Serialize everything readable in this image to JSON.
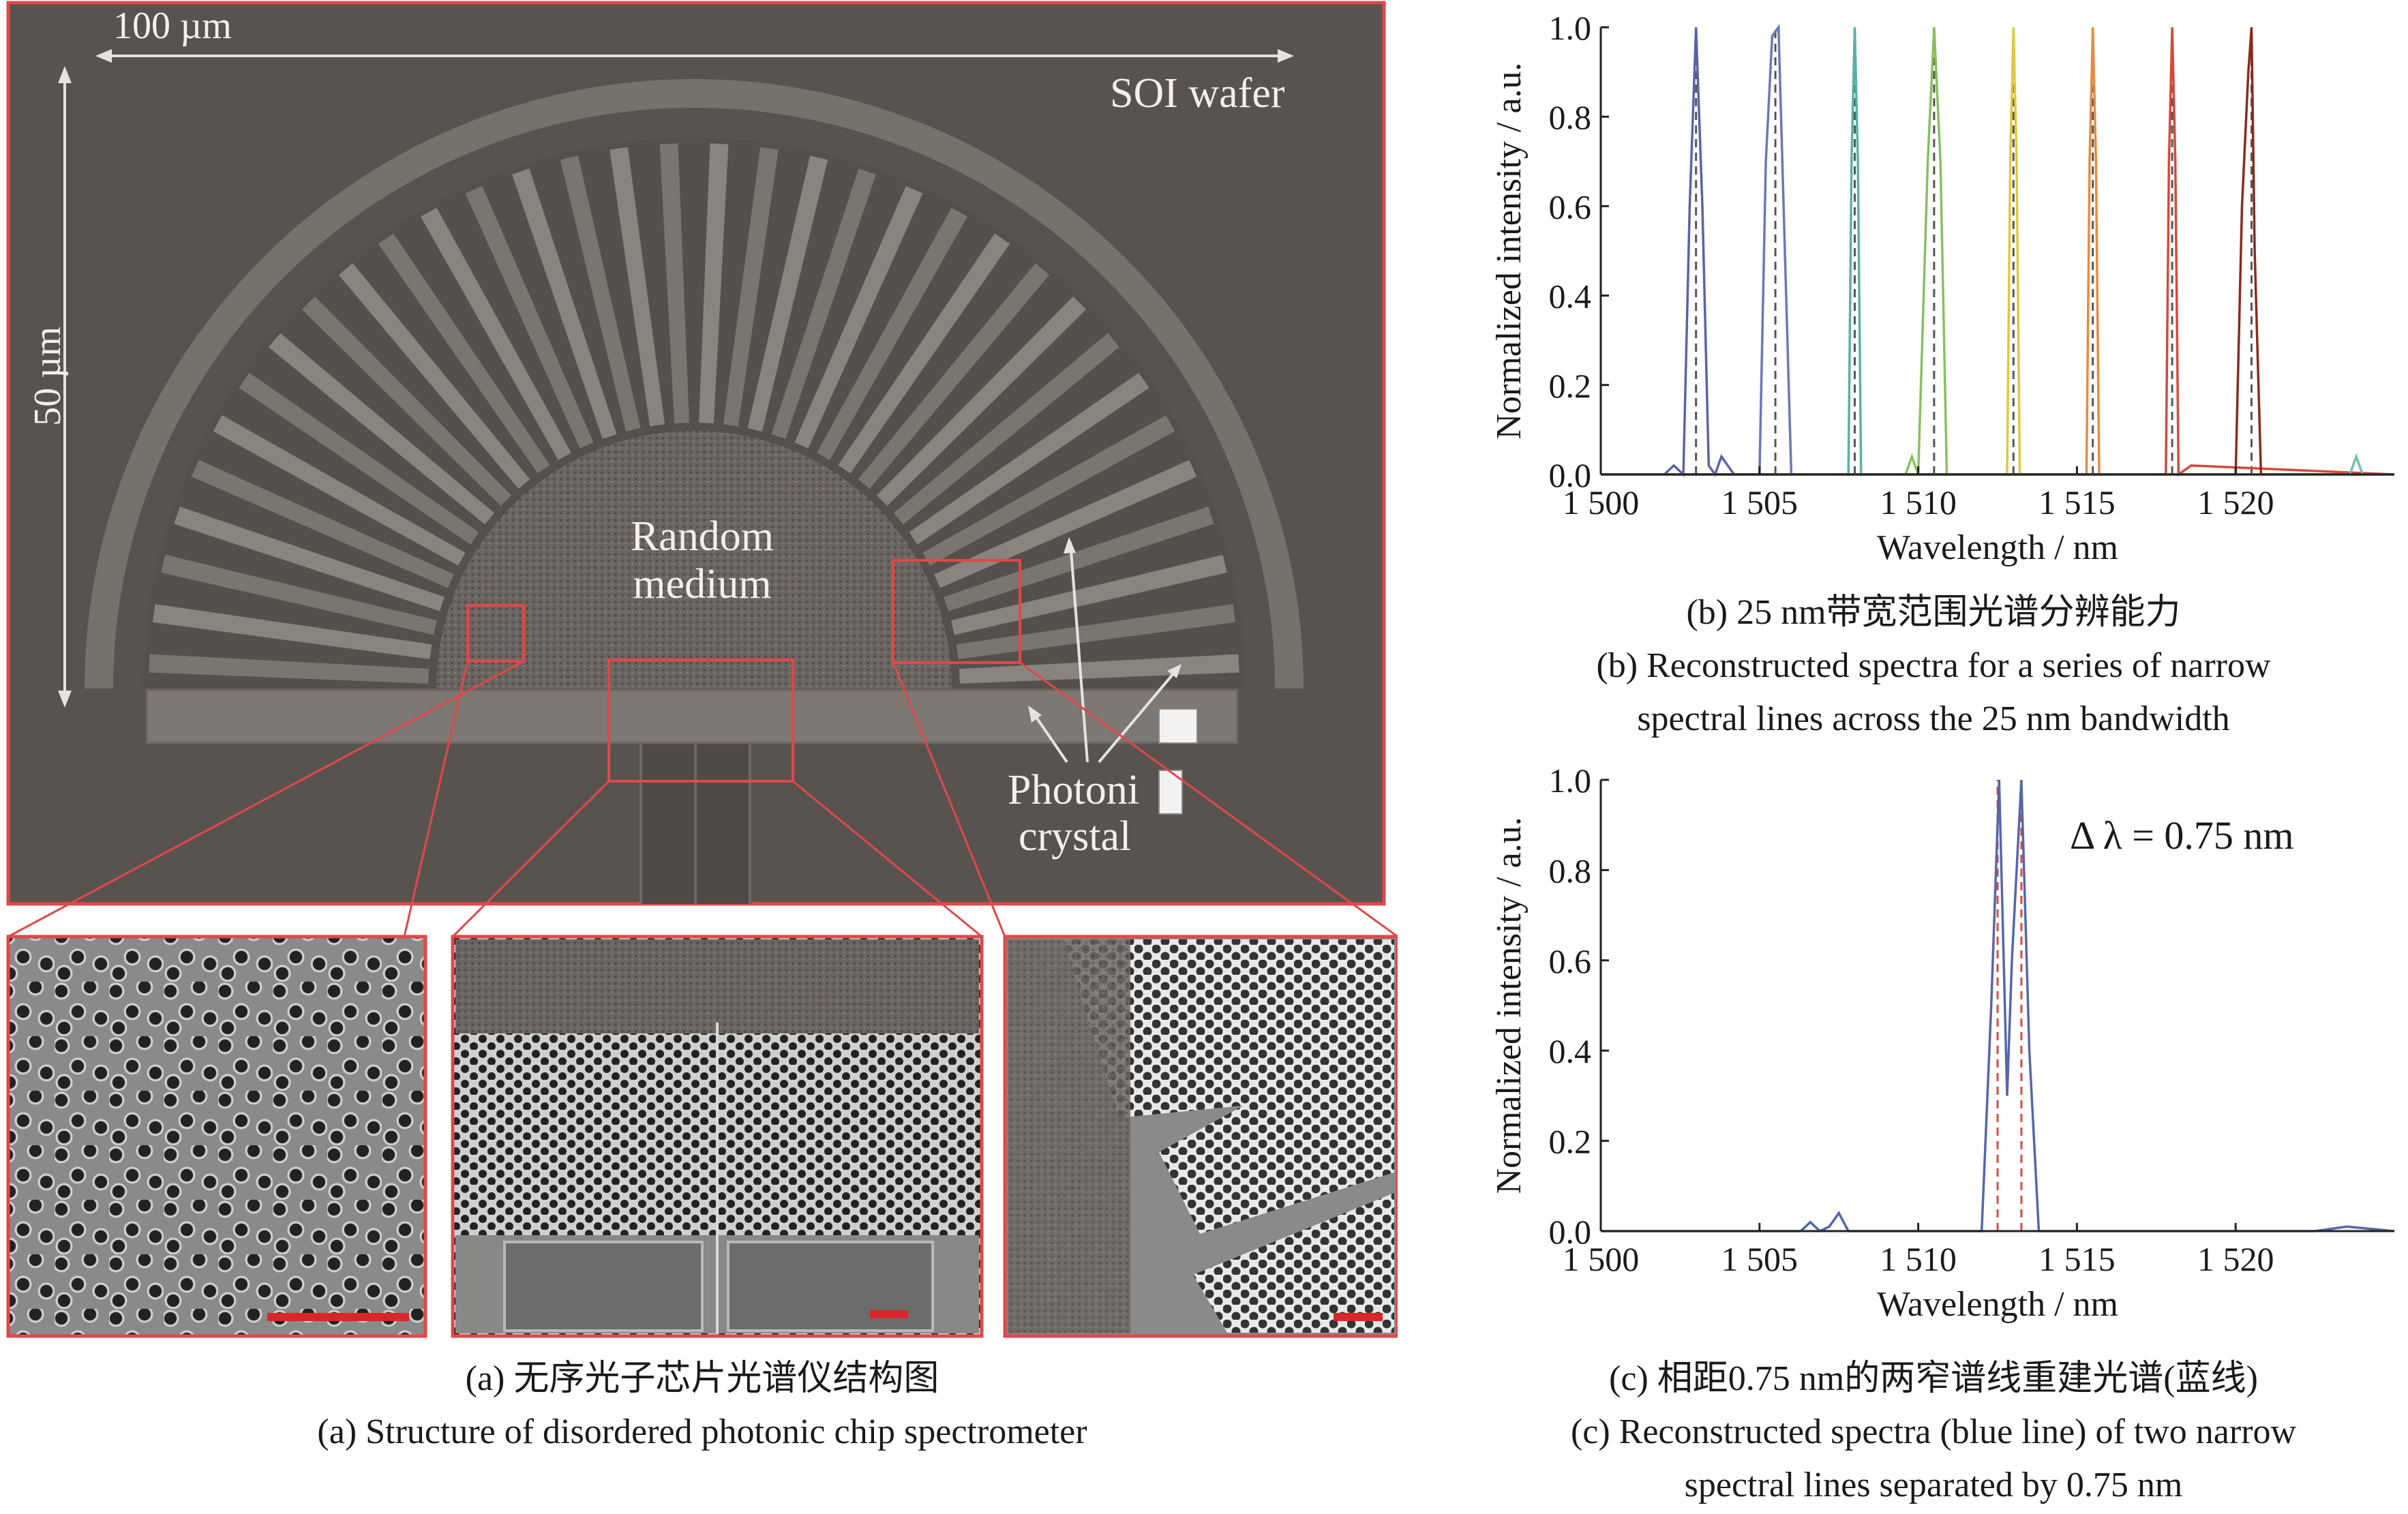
{
  "panel_a": {
    "scale_h": "100 µm",
    "scale_v": "50 µm",
    "wafer_label": "SOI wafer",
    "center_label_1": "Random",
    "center_label_2": "medium",
    "pc_label_1": "Photoni",
    "pc_label_2": "crystal",
    "caption_cn": "(a) 无序光子芯片光谱仪结构图",
    "caption_en": "(a) Structure of disordered photonic chip spectrometer"
  },
  "panel_b": {
    "caption_cn": "(b) 25 nm带宽范围光谱分辨能力",
    "caption_en_1": "(b) Reconstructed spectra for a series of narrow",
    "caption_en_2": "spectral lines across the 25 nm bandwidth"
  },
  "panel_c": {
    "annotation": "Δ λ = 0.75 nm",
    "caption_cn": "(c) 相距0.75 nm的两窄谱线重建光谱(蓝线)",
    "caption_en_1": "(c) Reconstructed spectra (blue line) of two narrow",
    "caption_en_2": "spectral lines separated by 0.75 nm"
  },
  "colors": {
    "sem_bg": "#59534f",
    "inset_border": "#e0484a",
    "scale_bar": "#d8262a",
    "dashed_b": "#555555",
    "dashed_c": "#e0483a",
    "blue": "#5566aa"
  },
  "chart_data": [
    {
      "type": "line",
      "xlabel": "Wavelength / nm",
      "ylabel": "Normalized intensity / a.u.",
      "xlim": [
        1500,
        1525
      ],
      "ylim": [
        0,
        1.0
      ],
      "xticks": [
        1500,
        1505,
        1510,
        1515,
        1520
      ],
      "xtick_labels": [
        "1 500",
        "1 505",
        "1 510",
        "1 515",
        "1 520"
      ],
      "yticks": [
        0.0,
        0.2,
        0.4,
        0.6,
        0.8,
        1.0
      ],
      "ytick_labels": [
        "0.0",
        "0.2",
        "0.4",
        "0.6",
        "0.8",
        "1.0"
      ],
      "grid": false,
      "reference_lines": [
        1503.0,
        1505.5,
        1508.0,
        1510.5,
        1513.0,
        1515.5,
        1518.0,
        1520.5
      ],
      "series": [
        {
          "color": "#5a63a8",
          "peak": 1503.0,
          "values_x": [
            1500.0,
            1502.0,
            1502.3,
            1502.6,
            1502.8,
            1503.0,
            1503.2,
            1503.4,
            1503.6,
            1503.8,
            1504.2,
            1525.0
          ],
          "values_y": [
            0.0,
            0.0,
            0.02,
            0.0,
            0.6,
            1.0,
            0.6,
            0.02,
            0.0,
            0.04,
            0.0,
            0.0
          ]
        },
        {
          "color": "#6a78b8",
          "peak": 1505.5,
          "values_x": [
            1500.0,
            1505.0,
            1505.2,
            1505.4,
            1505.6,
            1505.8,
            1506.0,
            1525.0
          ],
          "values_y": [
            0.0,
            0.0,
            0.7,
            0.98,
            1.0,
            0.5,
            0.0,
            0.0
          ]
        },
        {
          "color": "#5ab0a8",
          "peak": 1508.0,
          "values_x": [
            1500.0,
            1507.8,
            1507.9,
            1508.0,
            1508.1,
            1508.2,
            1525.0
          ],
          "values_y": [
            0.0,
            0.0,
            0.7,
            1.0,
            0.7,
            0.0,
            0.0
          ]
        },
        {
          "color": "#88c060",
          "peak": 1510.5,
          "values_x": [
            1500.0,
            1509.6,
            1509.8,
            1510.0,
            1510.3,
            1510.5,
            1510.7,
            1510.9,
            1525.0
          ],
          "values_y": [
            0.0,
            0.0,
            0.04,
            0.0,
            0.7,
            1.0,
            0.7,
            0.0,
            0.0
          ]
        },
        {
          "color": "#e0c840",
          "peak": 1513.0,
          "values_x": [
            1500.0,
            1512.8,
            1512.9,
            1513.0,
            1513.1,
            1513.2,
            1525.0
          ],
          "values_y": [
            0.0,
            0.0,
            0.7,
            1.0,
            0.7,
            0.0,
            0.0
          ]
        },
        {
          "color": "#e88a40",
          "peak": 1515.5,
          "values_x": [
            1500.0,
            1515.3,
            1515.4,
            1515.5,
            1515.6,
            1515.7,
            1525.0
          ],
          "values_y": [
            0.0,
            0.0,
            0.7,
            1.0,
            0.7,
            0.0,
            0.0
          ]
        },
        {
          "color": "#d84838",
          "peak": 1518.0,
          "values_x": [
            1500.0,
            1517.8,
            1517.9,
            1518.0,
            1518.1,
            1518.2,
            1518.6,
            1525.0
          ],
          "values_y": [
            0.0,
            0.0,
            0.7,
            1.0,
            0.7,
            0.0,
            0.02,
            0.0
          ]
        },
        {
          "color": "#8a2a20",
          "peak": 1520.5,
          "values_x": [
            1500.0,
            1520.0,
            1520.2,
            1520.4,
            1520.5,
            1520.6,
            1520.8,
            1525.0
          ],
          "values_y": [
            0.0,
            0.0,
            0.6,
            0.9,
            1.0,
            0.5,
            0.0,
            0.0
          ]
        },
        {
          "color": "#70c0b0",
          "peak": 1524.0,
          "values_x": [
            1500.0,
            1523.6,
            1523.8,
            1524.0,
            1525.0
          ],
          "values_y": [
            0.0,
            0.0,
            0.04,
            0.0,
            0.0
          ]
        }
      ]
    },
    {
      "type": "line",
      "xlabel": "Wavelength / nm",
      "ylabel": "Normalized intensity / a.u.",
      "xlim": [
        1500,
        1525
      ],
      "ylim": [
        0,
        1.0
      ],
      "xticks": [
        1500,
        1505,
        1510,
        1515,
        1520
      ],
      "xtick_labels": [
        "1 500",
        "1 505",
        "1 510",
        "1 515",
        "1 520"
      ],
      "yticks": [
        0.0,
        0.2,
        0.4,
        0.6,
        0.8,
        1.0
      ],
      "ytick_labels": [
        "0.0",
        "0.2",
        "0.4",
        "0.6",
        "0.8",
        "1.0"
      ],
      "grid": false,
      "reference_lines": [
        1512.5,
        1513.25
      ],
      "series": [
        {
          "color": "#5566aa",
          "values_x": [
            1500.0,
            1506.3,
            1506.6,
            1506.9,
            1507.2,
            1507.5,
            1507.8,
            1512.0,
            1512.3,
            1512.55,
            1512.8,
            1512.95,
            1513.25,
            1513.5,
            1513.8,
            1522.5,
            1523.5,
            1525.0
          ],
          "values_y": [
            0.0,
            0.0,
            0.02,
            0.0,
            0.01,
            0.04,
            0.0,
            0.0,
            0.5,
            1.0,
            0.3,
            0.6,
            1.0,
            0.4,
            0.0,
            0.0,
            0.01,
            0.0
          ]
        }
      ]
    }
  ]
}
